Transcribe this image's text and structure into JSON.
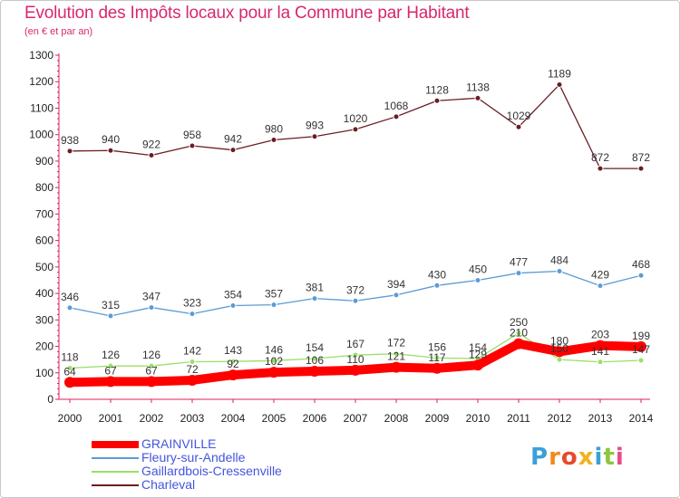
{
  "title": "Evolution des Impôts locaux pour la Commune par Habitant",
  "subtitle": "(en € et par an)",
  "logo": {
    "letters": [
      "P",
      "r",
      "o",
      "x",
      "i",
      "t",
      "i"
    ],
    "colors": [
      "#3aa0d8",
      "#f28a1e",
      "#e84a2a",
      "#f2b21e",
      "#3aa0d8",
      "#8cc63f",
      "#e84a8a"
    ]
  },
  "chart_data": {
    "type": "line",
    "x": [
      "2000",
      "2001",
      "2002",
      "2003",
      "2004",
      "2005",
      "2006",
      "2007",
      "2008",
      "2009",
      "2010",
      "2011",
      "2012",
      "2013",
      "2014"
    ],
    "ylim": [
      0,
      1300
    ],
    "yticks": [
      "0",
      "100",
      "200",
      "300",
      "400",
      "500",
      "600",
      "700",
      "800",
      "900",
      "1000",
      "1100",
      "1200",
      "1300"
    ],
    "grid": false,
    "legend_position": "bottom-left",
    "series": [
      {
        "name": "GRAINVILLE",
        "color": "#ff0000",
        "values": [
          64,
          67,
          67,
          72,
          92,
          102,
          106,
          110,
          121,
          117,
          129,
          210,
          180,
          203,
          199
        ],
        "labels": [
          "64",
          "67",
          "67",
          "72",
          "92",
          "102",
          "106",
          "110",
          "121",
          "117",
          "129",
          "210",
          "180",
          "203",
          "199"
        ]
      },
      {
        "name": "Fleury-sur-Andelle",
        "color": "#5b9bd5",
        "values": [
          346,
          315,
          347,
          323,
          354,
          357,
          381,
          372,
          394,
          430,
          450,
          477,
          484,
          429,
          468
        ],
        "labels": [
          "346",
          "315",
          "347",
          "323",
          "354",
          "357",
          "381",
          "372",
          "394",
          "430",
          "450",
          "477",
          "484",
          "429",
          "468"
        ]
      },
      {
        "name": "Gaillardbois-Cressenville",
        "color": "#99e066",
        "values": [
          118,
          126,
          126,
          142,
          143,
          146,
          154,
          167,
          172,
          156,
          154,
          250,
          150,
          141,
          147
        ],
        "labels": [
          "118",
          "126",
          "126",
          "142",
          "143",
          "146",
          "154",
          "167",
          "172",
          "156",
          "154",
          "250",
          "150",
          "141",
          "147"
        ]
      },
      {
        "name": "Charleval",
        "color": "#6b1d23",
        "values": [
          938,
          940,
          922,
          958,
          942,
          980,
          993,
          1020,
          1068,
          1128,
          1138,
          1029,
          1189,
          872,
          872
        ],
        "labels": [
          "938",
          "940",
          "922",
          "958",
          "942",
          "980",
          "993",
          "1020",
          "1068",
          "1128",
          "1138",
          "1029",
          "1189",
          "872",
          "872"
        ]
      }
    ]
  }
}
